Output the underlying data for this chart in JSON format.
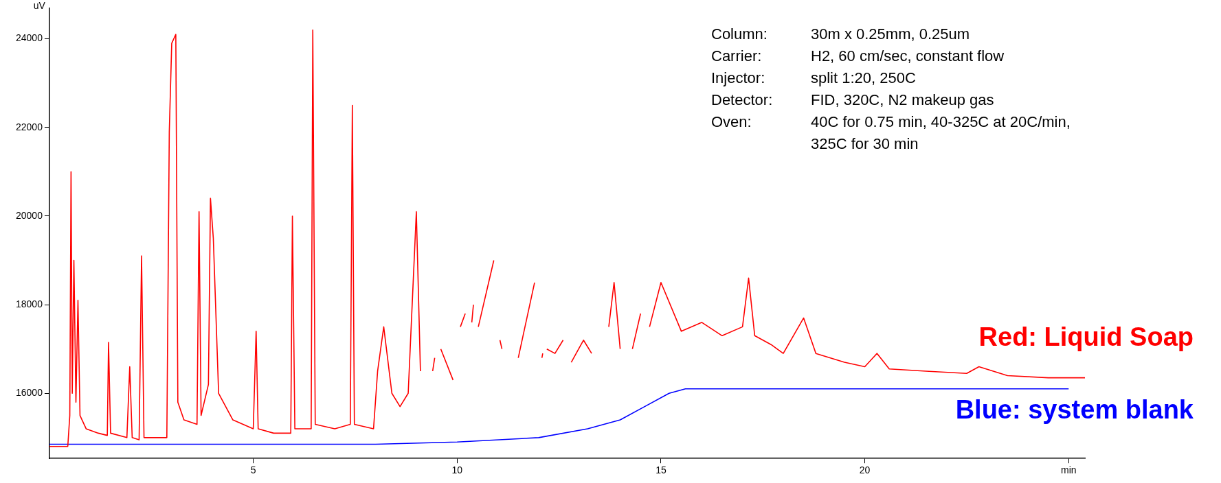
{
  "chart_data": {
    "type": "line",
    "ylabel": "uV",
    "xlim": [
      0,
      25.4
    ],
    "xticks": [
      5,
      10,
      15,
      20,
      {
        "value": 25,
        "label": "min"
      }
    ],
    "ylim": [
      14530,
      24700
    ],
    "yticks": [
      16000,
      18000,
      20000,
      22000,
      24000
    ],
    "marker": "none",
    "legend": false,
    "annotations": [
      "Column:\t30m x 0.25mm, 0.25um",
      "Carrier:\tH2, 60 cm/sec, constant flow",
      "Injector:\tsplit 1:20, 250C",
      "Detector:\tFID, 320C, N2 makeup gas",
      "Oven:\t40C for 0.75 min, 40-325C at 20C/min,",
      "\t325C for 30 min"
    ],
    "series": [
      {
        "name": "Red: Liquid Soap",
        "color": "#ff0000",
        "x": [
          0,
          0.45,
          0.5,
          0.53,
          0.56,
          0.6,
          0.65,
          0.7,
          0.75,
          0.9,
          1.2,
          1.42,
          1.45,
          1.5,
          1.9,
          1.97,
          2.03,
          2.2,
          2.26,
          2.32,
          2.88,
          2.94,
          3.0,
          3.1,
          3.15,
          3.3,
          3.62,
          3.67,
          3.72,
          3.9,
          3.95,
          4.02,
          4.15,
          4.5,
          5.0,
          5.07,
          5.12,
          5.5,
          5.92,
          5.96,
          6.02,
          6.42,
          6.46,
          6.52,
          7.0,
          7.38,
          7.43,
          7.48,
          7.95,
          8.05,
          8.2,
          8.4,
          8.6,
          8.8,
          9.0,
          9.1,
          9.34,
          9.4,
          9.45,
          9.52,
          9.6,
          9.9,
          10.0,
          10.08,
          10.2,
          10.3,
          10.36,
          10.4,
          10.44,
          10.52,
          10.9,
          10.97,
          11.05,
          11.1,
          11.41,
          11.5,
          11.9,
          12.03,
          12.08,
          12.1,
          12.13,
          12.2,
          12.4,
          12.6,
          12.73,
          12.8,
          13.1,
          13.3,
          13.66,
          13.72,
          13.85,
          14.0,
          14.22,
          14.3,
          14.5,
          14.66,
          14.72,
          15.0,
          15.5,
          16.0,
          16.5,
          17.0,
          17.15,
          17.3,
          17.7,
          18.0,
          18.5,
          18.8,
          19.5,
          20.0,
          20.3,
          20.6,
          21.5,
          22.5,
          22.8,
          23.5,
          24.5,
          25.4
        ],
        "values": [
          14800,
          14800,
          15500,
          21000,
          16000,
          19000,
          15800,
          18100,
          15500,
          15200,
          15100,
          15050,
          17150,
          15100,
          15000,
          16600,
          15000,
          14950,
          19100,
          15000,
          15000,
          21900,
          23900,
          24100,
          15800,
          15400,
          15300,
          20100,
          15500,
          16200,
          20400,
          19500,
          16000,
          15400,
          15200,
          17400,
          15200,
          15100,
          15100,
          20000,
          15200,
          15200,
          24200,
          15300,
          15200,
          15300,
          22500,
          15300,
          15200,
          16500,
          17500,
          16000,
          15700,
          16000,
          20100,
          16500,
          null,
          16500,
          16800,
          null,
          17000,
          16300,
          null,
          17500,
          17800,
          null,
          17600,
          18000,
          null,
          17500,
          19000,
          null,
          17200,
          17000,
          null,
          16800,
          18500,
          null,
          16800,
          16900,
          null,
          17000,
          16900,
          17200,
          null,
          16700,
          17200,
          16900,
          null,
          17500,
          18500,
          17000,
          null,
          17000,
          17800,
          null,
          17500,
          18500,
          17400,
          17600,
          17300,
          17500,
          18600,
          17300,
          17100,
          16900,
          17700,
          16900,
          16700,
          16600,
          16900,
          16550,
          16500,
          16450,
          16600,
          16400,
          16350,
          16350
        ]
      },
      {
        "name": "Blue: system blank",
        "color": "#0000ff",
        "x": [
          0,
          0.45,
          8,
          10,
          12,
          13.2,
          14,
          14.6,
          15.2,
          15.6,
          25
        ],
        "values": [
          14850,
          14850,
          14850,
          14900,
          15000,
          15200,
          15400,
          15700,
          16000,
          16100,
          16100
        ]
      }
    ]
  }
}
